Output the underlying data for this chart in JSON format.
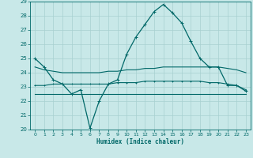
{
  "xlabel": "Humidex (Indice chaleur)",
  "bg_color": "#c8e8e8",
  "grid_color": "#a8d0d0",
  "line_color": "#006868",
  "x": [
    0,
    1,
    2,
    3,
    4,
    5,
    6,
    7,
    8,
    9,
    10,
    11,
    12,
    13,
    14,
    15,
    16,
    17,
    18,
    19,
    20,
    21,
    22,
    23
  ],
  "curve_main": [
    25.0,
    24.4,
    23.5,
    23.2,
    22.5,
    22.8,
    20.1,
    22.0,
    23.2,
    23.5,
    25.3,
    26.5,
    27.4,
    28.3,
    28.8,
    28.2,
    27.5,
    26.2,
    25.0,
    24.4,
    24.4,
    23.1,
    23.1,
    22.7
  ],
  "curve_upper": [
    24.4,
    24.2,
    24.1,
    24.0,
    24.0,
    24.0,
    24.0,
    24.0,
    24.1,
    24.1,
    24.2,
    24.2,
    24.3,
    24.3,
    24.4,
    24.4,
    24.4,
    24.4,
    24.4,
    24.4,
    24.4,
    24.3,
    24.2,
    24.0
  ],
  "curve_mid": [
    23.1,
    23.1,
    23.2,
    23.2,
    23.2,
    23.2,
    23.2,
    23.2,
    23.2,
    23.3,
    23.3,
    23.3,
    23.4,
    23.4,
    23.4,
    23.4,
    23.4,
    23.4,
    23.4,
    23.3,
    23.3,
    23.2,
    23.1,
    22.8
  ],
  "curve_flat": [
    22.5,
    22.5,
    22.5,
    22.5,
    22.5,
    22.5,
    22.5,
    22.5,
    22.5,
    22.5,
    22.5,
    22.5,
    22.5,
    22.5,
    22.5,
    22.5,
    22.5,
    22.5,
    22.5,
    22.5,
    22.5,
    22.5,
    22.5,
    22.5
  ],
  "ylim": [
    20,
    29
  ],
  "xlim": [
    -0.5,
    23.5
  ],
  "yticks": [
    20,
    21,
    22,
    23,
    24,
    25,
    26,
    27,
    28,
    29
  ],
  "xticks": [
    0,
    1,
    2,
    3,
    4,
    5,
    6,
    7,
    8,
    9,
    10,
    11,
    12,
    13,
    14,
    15,
    16,
    17,
    18,
    19,
    20,
    21,
    22,
    23
  ]
}
